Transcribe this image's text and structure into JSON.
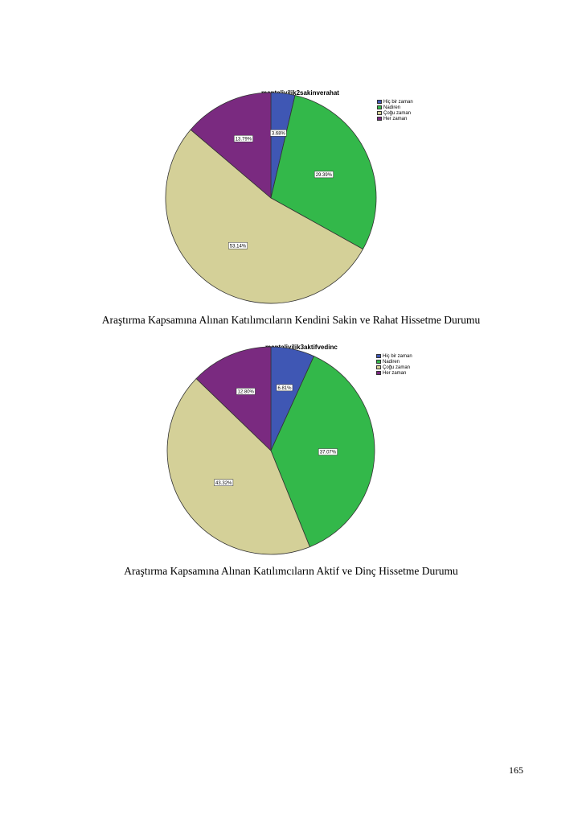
{
  "chart_data": [
    {
      "type": "pie",
      "title": "mentaliyilik2sakinverahat",
      "categories": [
        "Hiç bir zaman",
        "Nadiren",
        "Çoğu zaman",
        "Her zaman"
      ],
      "values": [
        3.68,
        29.39,
        53.14,
        13.79
      ],
      "value_labels": [
        "3.68%",
        "29.39%",
        "53.14%",
        "13.79%"
      ],
      "colors": [
        "#3f57b4",
        "#33b84a",
        "#d4d098",
        "#7a2a80"
      ],
      "legend_position": "top-right"
    },
    {
      "type": "pie",
      "title": "mentaliyilik3aktifvedinc",
      "categories": [
        "Hiç bir zaman",
        "Nadiren",
        "Çoğu zaman",
        "Her zaman"
      ],
      "values": [
        6.81,
        37.07,
        43.32,
        12.8
      ],
      "value_labels": [
        "6.81%",
        "37.07%",
        "43.32%",
        "12.80%"
      ],
      "colors": [
        "#3f57b4",
        "#33b84a",
        "#d4d098",
        "#7a2a80"
      ],
      "legend_position": "top-right"
    }
  ],
  "captions": [
    "Araştırma Kapsamına Alınan Katılımcıların Kendini Sakin ve Rahat Hissetme Durumu",
    "Araştırma Kapsamına Alınan Katılımcıların Aktif ve Dinç Hissetme Durumu"
  ],
  "page_number": "165"
}
